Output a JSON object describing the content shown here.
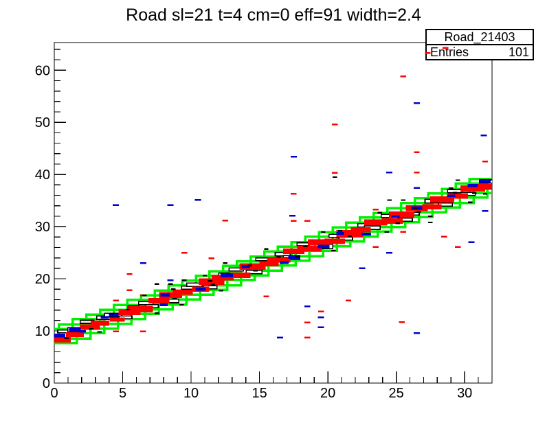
{
  "title": "Road sl=21 t=4 cm=0 eff=91 width=2.4",
  "stats_box": {
    "title": "Road_21403",
    "entries_label": "Entries",
    "entries_value": "101"
  },
  "chart_data": {
    "type": "heatmap",
    "style": "root-box-2d-histogram",
    "title": "Road sl=21 t=4 cm=0 eff=91 width=2.4",
    "xlabel": "",
    "ylabel": "",
    "xlim": [
      0,
      32
    ],
    "ylim": [
      0,
      65.3
    ],
    "x_major_ticks": [
      0,
      5,
      10,
      15,
      20,
      25,
      30
    ],
    "x_minor_step": 1,
    "y_major_ticks": [
      0,
      10,
      20,
      30,
      40,
      50,
      60
    ],
    "y_minor_step": 2,
    "grid": false,
    "legend": false,
    "frame_color": "#000000",
    "background": "#ffffff",
    "series": [
      {
        "name": "road",
        "style": "outline",
        "color": "#00f000",
        "line_width": 3.5,
        "default_w": 2.3,
        "default_h": 2.7,
        "boxes": [
          [
            0.5,
            9.0
          ],
          [
            1.5,
            9.9
          ],
          [
            2.5,
            10.9
          ],
          [
            3.5,
            11.8
          ],
          [
            4.5,
            12.7
          ],
          [
            5.5,
            13.6
          ],
          [
            6.5,
            14.6
          ],
          [
            7.5,
            15.5
          ],
          [
            8.5,
            16.4
          ],
          [
            9.5,
            17.4
          ],
          [
            10.5,
            18.3
          ],
          [
            11.5,
            19.2
          ],
          [
            12.5,
            20.1
          ],
          [
            13.5,
            21.1
          ],
          [
            14.5,
            22.0
          ],
          [
            15.5,
            22.9
          ],
          [
            16.5,
            23.9
          ],
          [
            17.5,
            24.8
          ],
          [
            18.5,
            25.7
          ],
          [
            19.5,
            26.7
          ],
          [
            20.5,
            27.6
          ],
          [
            21.5,
            28.5
          ],
          [
            22.5,
            29.4
          ],
          [
            23.5,
            30.4
          ],
          [
            24.5,
            31.3
          ],
          [
            25.5,
            32.2
          ],
          [
            26.5,
            33.2
          ],
          [
            27.5,
            34.1
          ],
          [
            28.5,
            35.0
          ],
          [
            29.5,
            35.9
          ],
          [
            30.5,
            36.9
          ],
          [
            31.5,
            37.8
          ]
        ]
      },
      {
        "name": "hits_open",
        "style": "open",
        "color": "#000000",
        "fill": "#ffffff",
        "line_width": 1.6,
        "default_w": 1.0,
        "default_h": 0.6,
        "boxes": [
          [
            0.7,
            9.9,
            0.9,
            0.55
          ],
          [
            1.6,
            10.2,
            1.2,
            0.9
          ],
          [
            2.4,
            11.75,
            1.0,
            0.6
          ],
          [
            3.65,
            12.55,
            1.1,
            0.65
          ],
          [
            4.3,
            13.05,
            1.25,
            0.7
          ],
          [
            5.2,
            12.6,
            0.95,
            0.55
          ],
          [
            5.8,
            14.6,
            0.8,
            0.5
          ],
          [
            6.7,
            15.35,
            1.05,
            0.6
          ],
          [
            7.15,
            14.75,
            0.9,
            0.55
          ],
          [
            8.5,
            15.75,
            1.2,
            0.7
          ],
          [
            9.8,
            18.3,
            1.0,
            0.6
          ],
          [
            10.25,
            18.85,
            1.15,
            0.65
          ],
          [
            11.4,
            18.35,
            1.0,
            0.6
          ],
          [
            12.65,
            20.65,
            1.25,
            0.85
          ],
          [
            13.3,
            21.8,
            1.05,
            0.6
          ],
          [
            14.6,
            21.3,
            1.15,
            0.65
          ],
          [
            15.2,
            23.75,
            0.95,
            0.55
          ],
          [
            16.7,
            24.7,
            1.1,
            0.65
          ],
          [
            17.35,
            24.1,
            1.2,
            0.7
          ],
          [
            18.2,
            26.65,
            0.9,
            0.55
          ],
          [
            19.7,
            26.2,
            1.3,
            0.9
          ],
          [
            20.6,
            28.25,
            1.05,
            0.6
          ],
          [
            21.3,
            27.7,
            1.0,
            0.6
          ],
          [
            22.75,
            30.25,
            1.1,
            0.65
          ],
          [
            23.25,
            29.8,
            1.15,
            0.65
          ],
          [
            24.4,
            32.05,
            1.0,
            0.6
          ],
          [
            25.65,
            31.35,
            1.05,
            0.6
          ],
          [
            26.2,
            32.5,
            0.95,
            0.55
          ],
          [
            27.7,
            34.9,
            1.2,
            0.7
          ],
          [
            28.6,
            34.25,
            1.0,
            0.6
          ],
          [
            29.3,
            36.8,
            1.1,
            0.65
          ],
          [
            30.25,
            36.25,
            1.05,
            0.6
          ],
          [
            31.65,
            38.65,
            1.15,
            0.65
          ]
        ]
      },
      {
        "name": "hits_red",
        "style": "fill",
        "color": "#ff0000",
        "default_w": 0.42,
        "default_h": 0.33,
        "boxes": [
          [
            0.4,
            8.3,
            1.6,
            1.0
          ],
          [
            1.5,
            9.3,
            1.3,
            0.9
          ],
          [
            2.6,
            10.7,
            1.5,
            1.05
          ],
          [
            3.35,
            11.5,
            1.35,
            1.0
          ],
          [
            4.6,
            12.2,
            1.1,
            0.8
          ],
          [
            5.5,
            13.6,
            1.6,
            1.1
          ],
          [
            6.3,
            14.2,
            1.8,
            1.25
          ],
          [
            7.65,
            15.8,
            1.55,
            1.05
          ],
          [
            8.5,
            16.9,
            1.7,
            1.15
          ],
          [
            9.4,
            17.4,
            1.45,
            1.0
          ],
          [
            10.7,
            18.0,
            1.25,
            0.95
          ],
          [
            11.5,
            19.45,
            1.85,
            1.25
          ],
          [
            12.3,
            20.2,
            1.6,
            1.1
          ],
          [
            13.6,
            20.65,
            1.5,
            1.05
          ],
          [
            14.5,
            22.35,
            1.9,
            1.25
          ],
          [
            15.7,
            22.9,
            1.4,
            1.0
          ],
          [
            16.4,
            23.65,
            1.7,
            1.15
          ],
          [
            17.5,
            25.25,
            1.55,
            1.05
          ],
          [
            18.65,
            25.8,
            1.8,
            1.2
          ],
          [
            19.35,
            27.0,
            1.65,
            1.1
          ],
          [
            20.5,
            27.2,
            1.5,
            1.05
          ],
          [
            21.6,
            28.7,
            1.95,
            1.3
          ],
          [
            22.4,
            29.4,
            1.45,
            1.0
          ],
          [
            23.5,
            30.8,
            1.7,
            1.15
          ],
          [
            24.7,
            31.1,
            1.55,
            1.05
          ],
          [
            25.4,
            32.3,
            1.85,
            1.25
          ],
          [
            26.5,
            33.55,
            1.6,
            1.1
          ],
          [
            27.6,
            33.8,
            1.4,
            1.0
          ],
          [
            28.35,
            35.2,
            1.75,
            1.2
          ],
          [
            29.5,
            35.9,
            1.5,
            1.05
          ],
          [
            30.6,
            37.3,
            1.8,
            1.2
          ],
          [
            31.5,
            37.6,
            1.65,
            1.1
          ],
          [
            25.5,
            58.8
          ],
          [
            27.3,
            63.3
          ],
          [
            28.6,
            64.3
          ],
          [
            20.5,
            49.6
          ],
          [
            26.5,
            44.3
          ],
          [
            31.5,
            42.5
          ],
          [
            20.5,
            40.3
          ],
          [
            26.5,
            40.4
          ],
          [
            17.5,
            36.3
          ],
          [
            23.5,
            33.3
          ],
          [
            12.5,
            31.2
          ],
          [
            17.5,
            31.1
          ],
          [
            18.5,
            31.1
          ],
          [
            25.5,
            29.0
          ],
          [
            28.5,
            28.1
          ],
          [
            29.5,
            26.1
          ],
          [
            23.5,
            26.1
          ],
          [
            9.5,
            25.0
          ],
          [
            11.5,
            23.9
          ],
          [
            5.5,
            20.9
          ],
          [
            5.5,
            17.8
          ],
          [
            6.5,
            16.8
          ],
          [
            15.5,
            16.6
          ],
          [
            4.5,
            15.8
          ],
          [
            21.5,
            15.8
          ],
          [
            19.5,
            13.7
          ],
          [
            18.5,
            11.6
          ],
          [
            25.4,
            11.7
          ],
          [
            4.5,
            9.9
          ],
          [
            6.5,
            9.9
          ],
          [
            18.5,
            8.7
          ]
        ]
      },
      {
        "name": "hits_blue",
        "style": "fill",
        "color": "#0000cc",
        "default_w": 0.45,
        "default_h": 0.33,
        "boxes": [
          [
            0.4,
            9.1,
            0.8,
            0.75
          ],
          [
            1.5,
            10.2,
            0.85,
            0.75
          ],
          [
            2.05,
            9.9,
            0.5,
            0.45
          ],
          [
            3.7,
            12.6,
            0.6,
            0.5
          ],
          [
            4.35,
            13.05,
            0.7,
            0.55
          ],
          [
            8.0,
            15.0,
            0.6,
            0.5
          ],
          [
            8.1,
            16.9,
            0.7,
            0.6
          ],
          [
            10.7,
            18.0,
            0.75,
            0.6
          ],
          [
            12.6,
            20.65,
            0.9,
            0.7
          ],
          [
            14.0,
            22.35,
            0.6,
            0.55
          ],
          [
            16.8,
            23.1,
            0.65,
            0.5
          ],
          [
            17.5,
            24.1,
            0.8,
            0.6
          ],
          [
            19.7,
            26.2,
            0.85,
            0.65
          ],
          [
            20.9,
            28.7,
            0.55,
            0.5
          ],
          [
            22.8,
            28.55,
            0.7,
            0.55
          ],
          [
            24.95,
            31.9,
            0.6,
            0.5
          ],
          [
            26.5,
            33.55,
            0.8,
            0.65
          ],
          [
            29.0,
            35.9,
            0.6,
            0.5
          ],
          [
            30.6,
            37.9,
            0.75,
            0.6
          ],
          [
            31.5,
            38.65,
            0.8,
            0.6
          ],
          [
            26.5,
            53.7
          ],
          [
            31.4,
            47.5
          ],
          [
            17.5,
            43.4
          ],
          [
            24.5,
            40.4
          ],
          [
            26.5,
            37.4
          ],
          [
            10.5,
            35.1
          ],
          [
            4.5,
            34.1
          ],
          [
            8.5,
            34.1
          ],
          [
            17.4,
            32.1
          ],
          [
            31.5,
            33.0
          ],
          [
            30.5,
            27.0
          ],
          [
            24.5,
            25.0
          ],
          [
            6.5,
            23.0
          ],
          [
            22.5,
            22.0
          ],
          [
            8.5,
            19.7
          ],
          [
            18.5,
            14.7
          ],
          [
            19.5,
            12.6
          ],
          [
            19.5,
            10.7
          ],
          [
            26.5,
            9.6
          ],
          [
            16.5,
            8.7
          ]
        ]
      },
      {
        "name": "hits_black",
        "style": "fill",
        "color": "#000000",
        "default_w": 0.32,
        "default_h": 0.3,
        "boxes": [
          [
            0.9,
            8.6
          ],
          [
            3.3,
            9.8
          ],
          [
            4.2,
            13.3
          ],
          [
            2.7,
            10.4
          ],
          [
            5.4,
            14.1
          ],
          [
            7.5,
            13.4
          ],
          [
            6.6,
            16.8
          ],
          [
            9.3,
            15.0
          ],
          [
            8.7,
            18.0
          ],
          [
            8.8,
            16.2
          ],
          [
            11.4,
            19.6
          ],
          [
            12.2,
            17.7
          ],
          [
            11.0,
            20.6
          ],
          [
            11.6,
            18.9
          ],
          [
            14.3,
            22.55
          ],
          [
            14.7,
            21.55
          ],
          [
            16.4,
            24.2
          ],
          [
            18.35,
            26.2
          ],
          [
            17.8,
            24.3
          ],
          [
            20.4,
            25.4
          ],
          [
            19.65,
            28.95
          ],
          [
            20.9,
            29.2
          ],
          [
            21.6,
            28.15
          ],
          [
            24.3,
            28.95
          ],
          [
            23.8,
            32.7
          ],
          [
            26.4,
            33.5
          ],
          [
            25.1,
            30.65
          ],
          [
            26.65,
            32.8
          ],
          [
            29.3,
            36.5
          ],
          [
            30.4,
            34.65
          ],
          [
            29.0,
            37.4
          ],
          [
            30.7,
            36.4
          ],
          [
            29.5,
            38.9
          ],
          [
            20.5,
            39.5
          ],
          [
            31.5,
            36.3
          ],
          [
            24.5,
            35.1
          ],
          [
            25.5,
            35.1
          ],
          [
            27.5,
            32.0
          ],
          [
            27.5,
            30.8
          ],
          [
            15.5,
            25.7
          ],
          [
            12.5,
            23.0
          ],
          [
            9.5,
            19.7
          ],
          [
            7.5,
            19.0
          ],
          [
            8.5,
            19.0
          ]
        ]
      }
    ]
  }
}
